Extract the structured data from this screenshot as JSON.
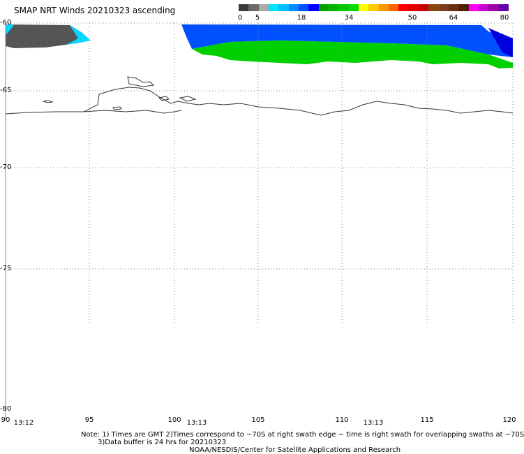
{
  "title": "SMAP NRT Winds 20210323 ascending",
  "colorbar": {
    "labels": [
      "0",
      "5",
      "18",
      "34",
      "50",
      "64",
      "80"
    ],
    "segments": [
      "#3a3a3a",
      "#6a6a6a",
      "#a9a9a9",
      "#00e5ff",
      "#00bfff",
      "#008cff",
      "#0050ff",
      "#0000ff",
      "#00a000",
      "#00b400",
      "#00c800",
      "#00dc00",
      "#ffff00",
      "#ffc800",
      "#ff9600",
      "#ff6400",
      "#ff0000",
      "#e00000",
      "#c80000",
      "#8b4513",
      "#7a3e1a",
      "#6a3010",
      "#502008",
      "#ff00ff",
      "#cc00cc",
      "#9900aa",
      "#6600aa"
    ]
  },
  "latitudes": [
    "-60",
    "-65",
    "-70",
    "-75",
    "-80"
  ],
  "longitudes": [
    "90",
    "95",
    "100",
    "105",
    "110",
    "115",
    "120"
  ],
  "times": [
    "13:12",
    "13:13",
    "13:13"
  ],
  "note_line1": "Note: 1) Times are GMT 2)Times correspond to ~70S at right swath edge ~ time is right swath for overlapping swaths at ~70S",
  "note_line2": "3)Data buffer is 24 hrs for 20210323",
  "credit": "NOAA/NESDIS/Center for Satellite Applications and Research",
  "wind_colors": {
    "calm": "#555555",
    "light": "#00c8ff",
    "moderate": "#0050ff",
    "strong": "#00d000"
  }
}
